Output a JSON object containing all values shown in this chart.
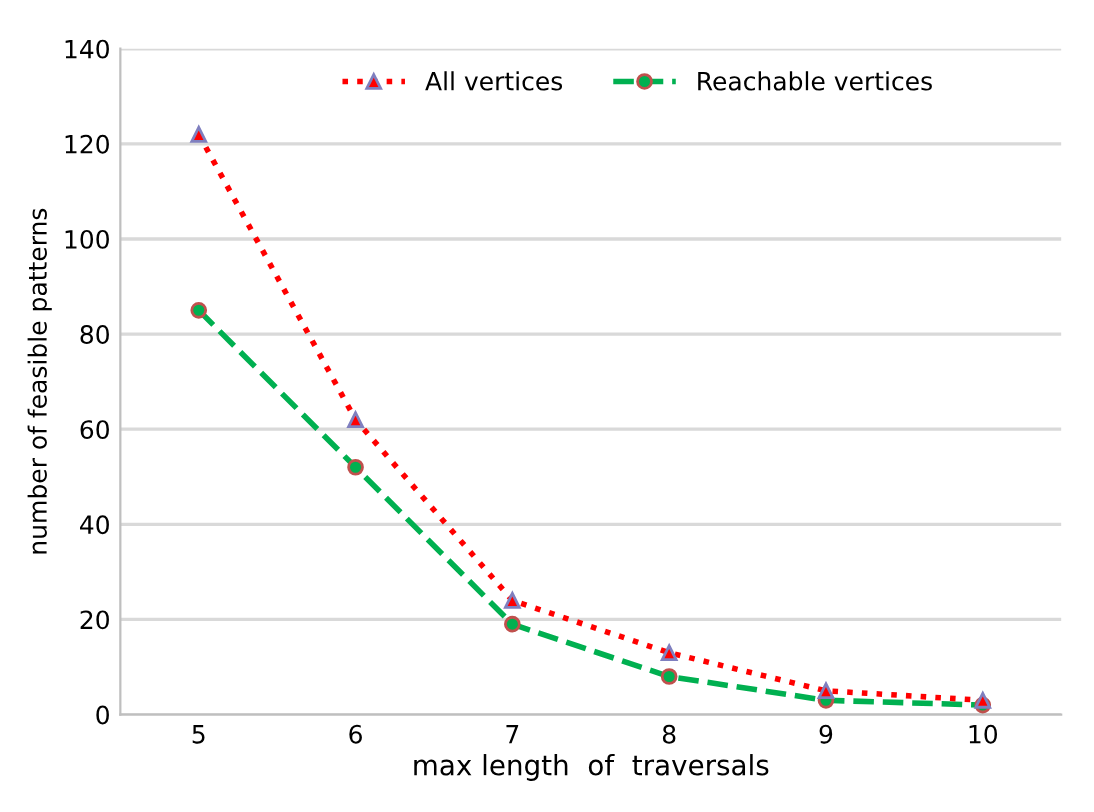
{
  "chart_data": {
    "type": "line",
    "xlabel": "max length  of  traversals",
    "ylabel": "number of feasible patterns",
    "categories": [
      "5",
      "6",
      "7",
      "8",
      "9",
      "10"
    ],
    "series": [
      {
        "name": "All vertices",
        "color": "#ff0000",
        "values": [
          122,
          62,
          24,
          13,
          5,
          3
        ],
        "marker": "triangle",
        "line_style": "dotted"
      },
      {
        "name": "Reachable vertices",
        "color": "#00b050",
        "values": [
          85,
          52,
          19,
          8,
          3,
          2
        ],
        "marker": "circle",
        "line_style": "dashed"
      }
    ],
    "ylim": [
      0,
      140
    ],
    "yticks": [
      0,
      20,
      40,
      60,
      80,
      100,
      120,
      140
    ],
    "grid": "y",
    "legend": "top"
  }
}
